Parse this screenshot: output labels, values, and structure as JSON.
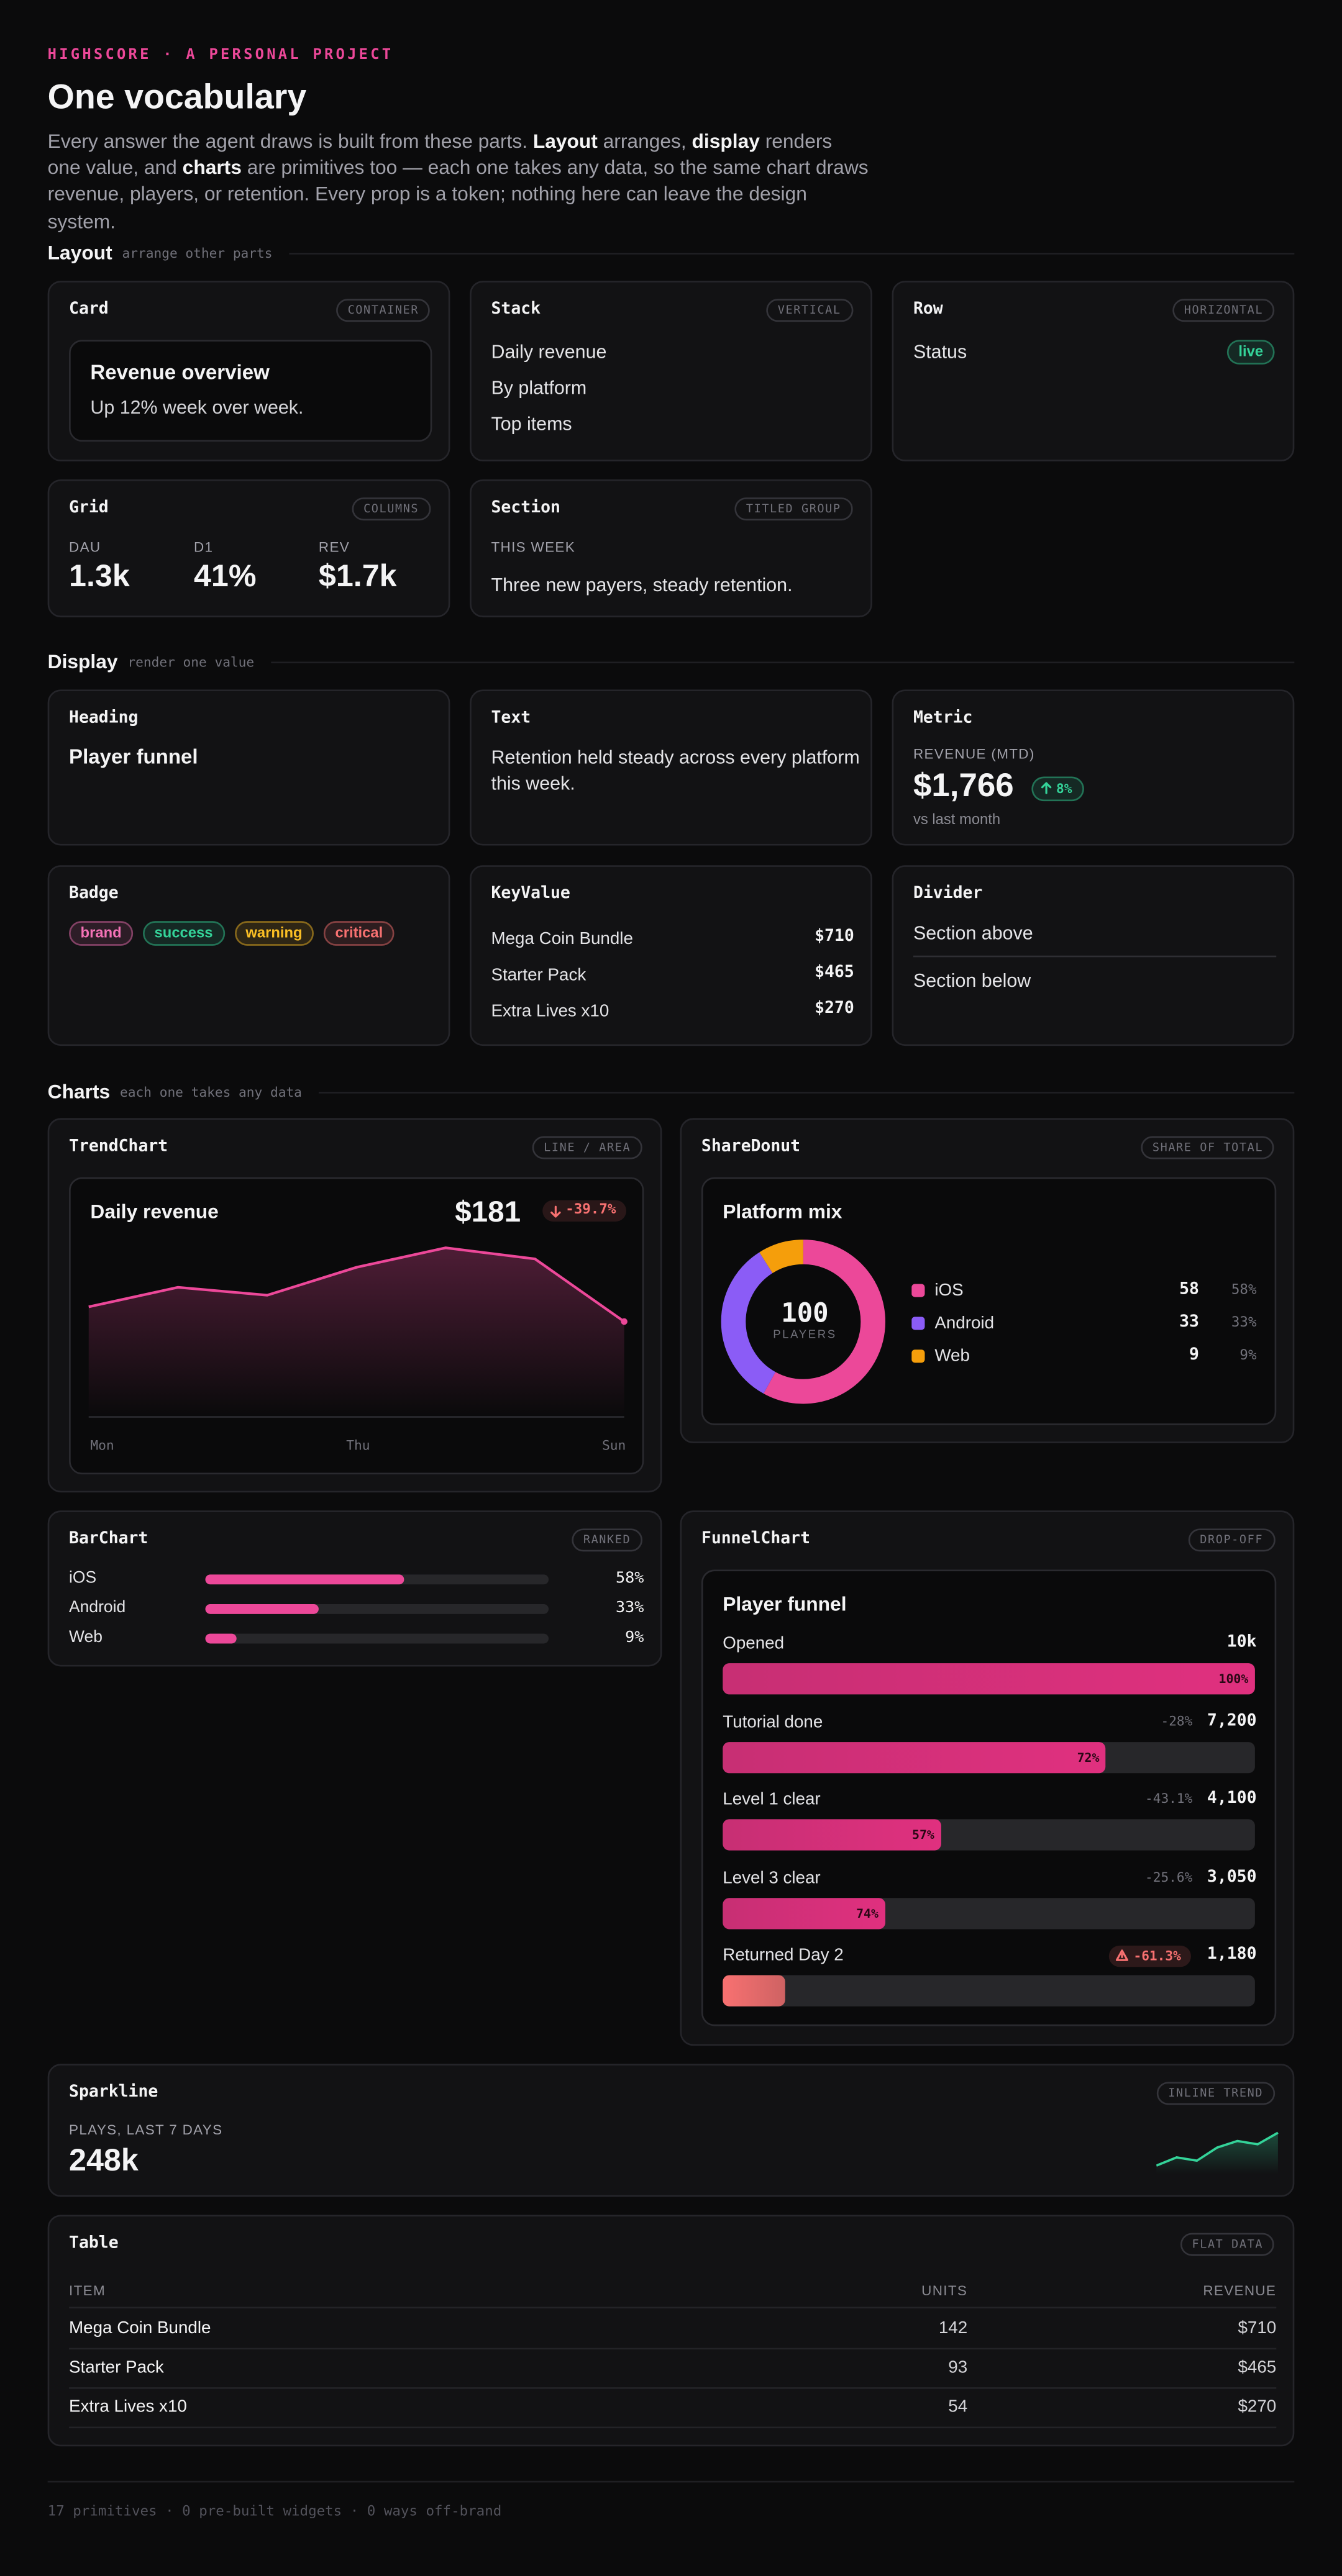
{
  "header": {
    "eyebrow": "HIGHSCORE · A PERSONAL PROJECT",
    "title": "One vocabulary",
    "intro": [
      "Every answer the agent draws is built from these parts. ",
      "Layout",
      " arranges, ",
      "display",
      " renders one value, and ",
      "charts",
      " are primitives too — each one takes any data, so the same chart draws revenue, players, or retention. Every prop is a token; nothing here can leave the design system."
    ]
  },
  "sections": {
    "layout": {
      "title": "Layout",
      "hint": "arrange other parts"
    },
    "display": {
      "title": "Display",
      "hint": "render one value"
    },
    "charts": {
      "title": "Charts",
      "hint": "each one takes any data"
    }
  },
  "card": {
    "name": "Card",
    "tag": "CONTAINER",
    "inner_title": "Revenue overview",
    "inner_text": "Up 12% week over week."
  },
  "stack": {
    "name": "Stack",
    "tag": "VERTICAL",
    "items": [
      "Daily revenue",
      "By platform",
      "Top items"
    ]
  },
  "row": {
    "name": "Row",
    "tag": "HORIZONTAL",
    "label": "Status",
    "badge": "live",
    "badge_color": "#34d399"
  },
  "grid": {
    "name": "Grid",
    "tag": "COLUMNS",
    "stats": [
      {
        "label": "DAU",
        "value": "1.3k"
      },
      {
        "label": "D1",
        "value": "41%"
      },
      {
        "label": "REV",
        "value": "$1.7k"
      }
    ]
  },
  "section": {
    "name": "Section",
    "tag": "TITLED GROUP",
    "label": "THIS WEEK",
    "text": "Three new payers, steady retention."
  },
  "heading": {
    "name": "Heading",
    "text": "Player funnel"
  },
  "text": {
    "name": "Text",
    "text": "Retention held steady across every platform this week."
  },
  "metric": {
    "name": "Metric",
    "label": "REVENUE (MTD)",
    "value": "$1,766",
    "delta": "8%",
    "delta_color": "#34d399",
    "note": "vs last month"
  },
  "badge": {
    "name": "Badge",
    "badges": [
      {
        "label": "brand",
        "color": "#f472b6"
      },
      {
        "label": "success",
        "color": "#34d399"
      },
      {
        "label": "warning",
        "color": "#fbbf24"
      },
      {
        "label": "critical",
        "color": "#f87171"
      }
    ]
  },
  "keyvalue": {
    "name": "KeyValue",
    "rows": [
      [
        "Mega Coin Bundle",
        "$710"
      ],
      [
        "Starter Pack",
        "$465"
      ],
      [
        "Extra Lives x10",
        "$270"
      ]
    ]
  },
  "divider": {
    "name": "Divider",
    "above": "Section above",
    "below": "Section below"
  },
  "trend": {
    "name": "TrendChart",
    "tag": "LINE / AREA",
    "title": "Daily revenue",
    "value": "$181",
    "delta": "-39.7%",
    "delta_color": "#f87171",
    "color": "#ec4899",
    "x": [
      "Mon",
      null,
      null,
      "Thu",
      null,
      null,
      "Sun"
    ],
    "values": [
      209,
      246,
      231,
      284,
      321,
      300,
      181
    ]
  },
  "donut": {
    "name": "ShareDonut",
    "tag": "SHARE OF TOTAL",
    "title": "Platform mix",
    "total": "100",
    "total_label": "PLAYERS",
    "slices": [
      {
        "name": "iOS",
        "color": "#ec4899",
        "value": 58,
        "value_label": "58%"
      },
      {
        "name": "Android",
        "color": "#8b5cf6",
        "value": 33,
        "value_label": "33%"
      },
      {
        "name": "Web",
        "color": "#f59e0b",
        "value": 9,
        "value_label": "9%"
      }
    ]
  },
  "bar": {
    "name": "BarChart",
    "tag": "RANKED",
    "color": "#ec4899",
    "bars": [
      {
        "name": "iOS",
        "value": 58,
        "value_label": "58%"
      },
      {
        "name": "Android",
        "value": 33,
        "value_label": "33%"
      },
      {
        "name": "Web",
        "value": 9,
        "value_label": "9%"
      }
    ]
  },
  "funnel": {
    "name": "FunnelChart",
    "tag": "DROP-OFF",
    "title": "Player funnel",
    "color": "#e0307f",
    "alert_color": "#f87171",
    "steps": [
      {
        "label": "Opened",
        "value": 10000,
        "value_label": "10k",
        "conversion": "100%"
      },
      {
        "label": "Tutorial done",
        "value": 7200,
        "value_label": "7,200",
        "drop": "-28%",
        "conversion": "72%"
      },
      {
        "label": "Level 1 clear",
        "value": 4100,
        "value_label": "4,100",
        "drop": "-43.1%",
        "conversion": "57%"
      },
      {
        "label": "Level 3 clear",
        "value": 3050,
        "value_label": "3,050",
        "drop": "-25.6%",
        "conversion": "74%"
      },
      {
        "label": "Returned Day 2",
        "value": 1180,
        "value_label": "1,180",
        "drop": "-61.3%",
        "alert": true
      }
    ]
  },
  "sparkline": {
    "name": "Sparkline",
    "tag": "INLINE TREND",
    "label": "PLAYS, LAST 7 DAYS",
    "value": "248k",
    "color": "#34d399",
    "values": [
      30,
      35,
      33,
      41,
      45,
      43,
      50
    ]
  },
  "table": {
    "name": "Table",
    "tag": "FLAT DATA",
    "columns": [
      "ITEM",
      "UNITS",
      "REVENUE"
    ],
    "rows": [
      [
        "Mega Coin Bundle",
        142,
        "$710"
      ],
      [
        "Starter Pack",
        93,
        "$465"
      ],
      [
        "Extra Lives x10",
        54,
        "$270"
      ]
    ]
  },
  "footer": "17 primitives · 0 pre-built widgets · 0 ways off-brand"
}
